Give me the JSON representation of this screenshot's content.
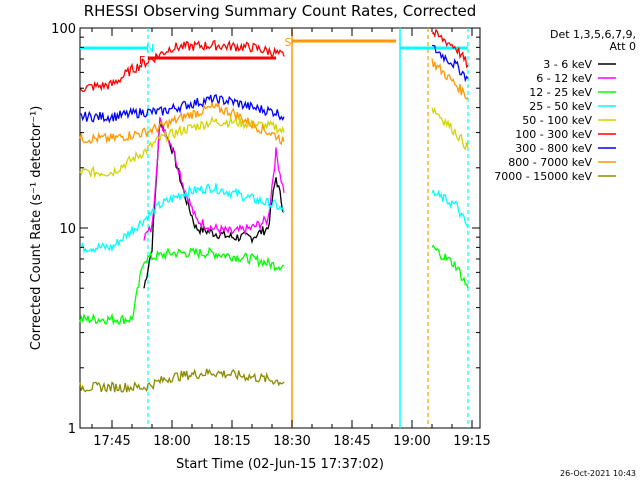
{
  "chart_data": {
    "type": "line",
    "title": "RHESSI Observing Summary Count Rates, Corrected",
    "xlabel": "Start Time (02-Jun-15 17:37:02)",
    "ylabel": "Corrected Count Rate (s⁻¹ detector⁻¹)",
    "yscale": "log",
    "ylim": [
      1,
      100
    ],
    "y_tick_labels": [
      "1",
      "10",
      "100"
    ],
    "x_tick_labels": [
      "17:45",
      "18:00",
      "18:15",
      "18:30",
      "18:45",
      "19:00",
      "19:15"
    ],
    "x_range_minutes": [
      37,
      137
    ],
    "legend": {
      "placement": "right",
      "header": [
        "Det 1,3,5,6,7,9,",
        "Att 0"
      ],
      "entries": [
        {
          "label": "3 - 6 keV",
          "color": "#000000"
        },
        {
          "label": "6 - 12 keV",
          "color": "#ff00ff"
        },
        {
          "label": "12 - 25 keV",
          "color": "#00ff00"
        },
        {
          "label": "25 - 50 keV",
          "color": "#00ffff"
        },
        {
          "label": "50 - 100 keV",
          "color": "#d4d400"
        },
        {
          "label": "100 - 300 keV",
          "color": "#ff0000"
        },
        {
          "label": "300 - 800 keV",
          "color": "#0000ff"
        },
        {
          "label": "800 - 7000 keV",
          "color": "#ff9900"
        },
        {
          "label": "7000 - 15000 keV",
          "color": "#8b8b00"
        }
      ]
    },
    "series": [
      {
        "band": "3 - 6 keV",
        "color": "#000000",
        "x": [
          53,
          55,
          57,
          60,
          63,
          66,
          70,
          75,
          80,
          84,
          86,
          88
        ],
        "y": [
          5,
          8,
          35,
          25,
          15,
          10,
          9.5,
          9,
          9,
          10,
          18,
          12
        ]
      },
      {
        "band": "6 - 12 keV",
        "color": "#ff00ff",
        "x": [
          53,
          55,
          57,
          60,
          63,
          66,
          70,
          75,
          80,
          84,
          86,
          88
        ],
        "y": [
          9,
          10,
          34,
          26,
          16,
          11,
          10,
          9.5,
          10,
          11,
          24,
          15
        ]
      },
      {
        "band": "12 - 25 keV",
        "color": "#00ff00",
        "x": [
          37,
          50,
          53,
          60,
          70,
          80,
          86,
          88
        ],
        "y": [
          3.5,
          3.5,
          7,
          7.5,
          7.5,
          7,
          6.5,
          6.5
        ]
      },
      {
        "band": "25 - 50 keV",
        "color": "#00ffff",
        "x": [
          37,
          45,
          53,
          57,
          63,
          70,
          75,
          80,
          86,
          88
        ],
        "y": [
          8,
          8,
          11,
          13,
          15,
          16,
          15,
          14,
          13,
          12
        ]
      },
      {
        "band": "50 - 100 keV",
        "color": "#d4d400",
        "x": [
          37,
          45,
          53,
          57,
          63,
          70,
          75,
          80,
          86,
          88
        ],
        "y": [
          19,
          19,
          24,
          28,
          31,
          34,
          34,
          33,
          32,
          30
        ]
      },
      {
        "band": "100 - 300 keV",
        "color": "#ff0000",
        "x": [
          37,
          45,
          50,
          55,
          60,
          70,
          80,
          86,
          88
        ],
        "y": [
          50,
          52,
          62,
          70,
          80,
          82,
          80,
          75,
          72
        ]
      },
      {
        "band": "300 - 800 keV",
        "color": "#0000ff",
        "x": [
          37,
          45,
          53,
          57,
          63,
          70,
          75,
          80,
          86,
          88
        ],
        "y": [
          36,
          36,
          38,
          38,
          41,
          44,
          43,
          40,
          38,
          36
        ]
      },
      {
        "band": "800 - 7000 keV",
        "color": "#ff9900",
        "x": [
          37,
          45,
          53,
          57,
          63,
          70,
          75,
          80,
          86,
          88
        ],
        "y": [
          28,
          28,
          30,
          32,
          36,
          40,
          38,
          33,
          29,
          27
        ]
      },
      {
        "band": "7000 - 15000 keV",
        "color": "#8b8b00",
        "x": [
          37,
          53,
          60,
          70,
          80,
          88
        ],
        "y": [
          1.6,
          1.6,
          1.8,
          1.9,
          1.8,
          1.7
        ]
      }
    ],
    "segments_after_gap": [
      {
        "band": "100 - 300 keV",
        "color": "#ff0000",
        "x": [
          125,
          131,
          134
        ],
        "y": [
          95,
          80,
          65
        ]
      },
      {
        "band": "300 - 800 keV",
        "color": "#0000ff",
        "x": [
          125,
          131,
          134
        ],
        "y": [
          80,
          65,
          56
        ]
      },
      {
        "band": "800 - 7000 keV",
        "color": "#ff9900",
        "x": [
          125,
          131,
          134
        ],
        "y": [
          68,
          52,
          45
        ]
      },
      {
        "band": "50 - 100 keV",
        "color": "#d4d400",
        "x": [
          125,
          131,
          134
        ],
        "y": [
          40,
          30,
          25
        ]
      },
      {
        "band": "25 - 50 keV",
        "color": "#00ffff",
        "x": [
          125,
          131,
          134
        ],
        "y": [
          15,
          13,
          10
        ]
      },
      {
        "band": "12 - 25 keV",
        "color": "#00ff00",
        "x": [
          125,
          131,
          134
        ],
        "y": [
          8,
          6.5,
          5
        ]
      }
    ],
    "annotations": {
      "flag_letters": [
        {
          "text": "N",
          "color": "#00ffff",
          "x": 54.5
        },
        {
          "text": "F",
          "color": "#ff0000",
          "x": 52.5
        },
        {
          "text": "S",
          "color": "#ff9900",
          "x": 89
        }
      ],
      "saa_line": {
        "color": "#ff9900",
        "x": [
          90,
          116
        ]
      },
      "night_lines": {
        "color": "#00ffff",
        "x": [
          [
            37,
            54
          ],
          [
            117,
            134
          ]
        ]
      },
      "flare_bar": {
        "color": "#ff0000",
        "x": [
          54,
          86
        ]
      },
      "vertical_solid_lines": [
        {
          "x": 90,
          "color": "#ff9900"
        },
        {
          "x": 117,
          "color": "#00ffff"
        }
      ],
      "vertical_dashed_lines": [
        {
          "x": 54,
          "color": "#00ffff"
        },
        {
          "x": 124,
          "color": "#ff9900"
        },
        {
          "x": 134,
          "color": "#00ffff"
        }
      ]
    },
    "timestamp": "26-Oct-2021 10:43",
    "grid": false
  }
}
